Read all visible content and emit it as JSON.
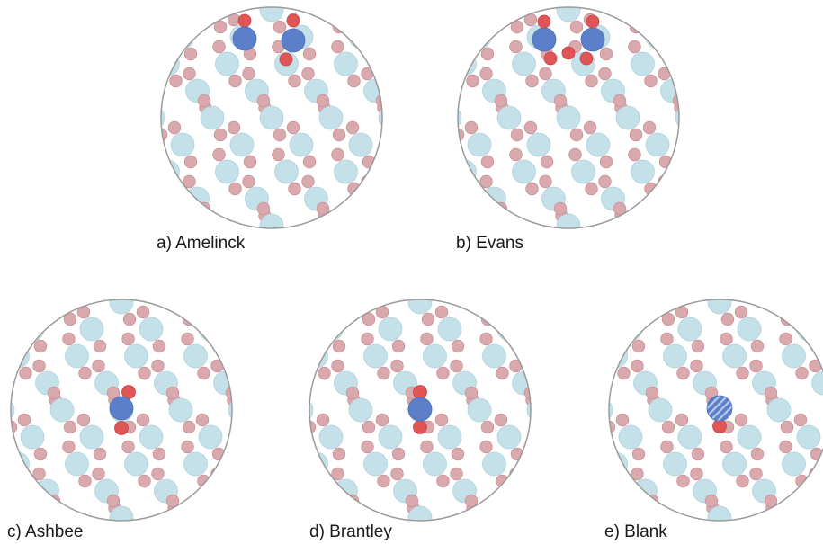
{
  "colors": {
    "background": "#ffffff",
    "circle_border": "#9a9a9a",
    "lattice_large": "#c4e0e8",
    "lattice_small": "#d9a9ad",
    "nitrogen_blue": "#5b7fc8",
    "oxygen_red": "#e05555",
    "label_text": "#1a1a1a"
  },
  "panels": [
    {
      "id": "a",
      "label": "a) Amelinck"
    },
    {
      "id": "b",
      "label": "b) Evans"
    },
    {
      "id": "c",
      "label": "c) Ashbee"
    },
    {
      "id": "d",
      "label": "d) Brantley"
    },
    {
      "id": "e",
      "label": "e) Blank"
    }
  ]
}
